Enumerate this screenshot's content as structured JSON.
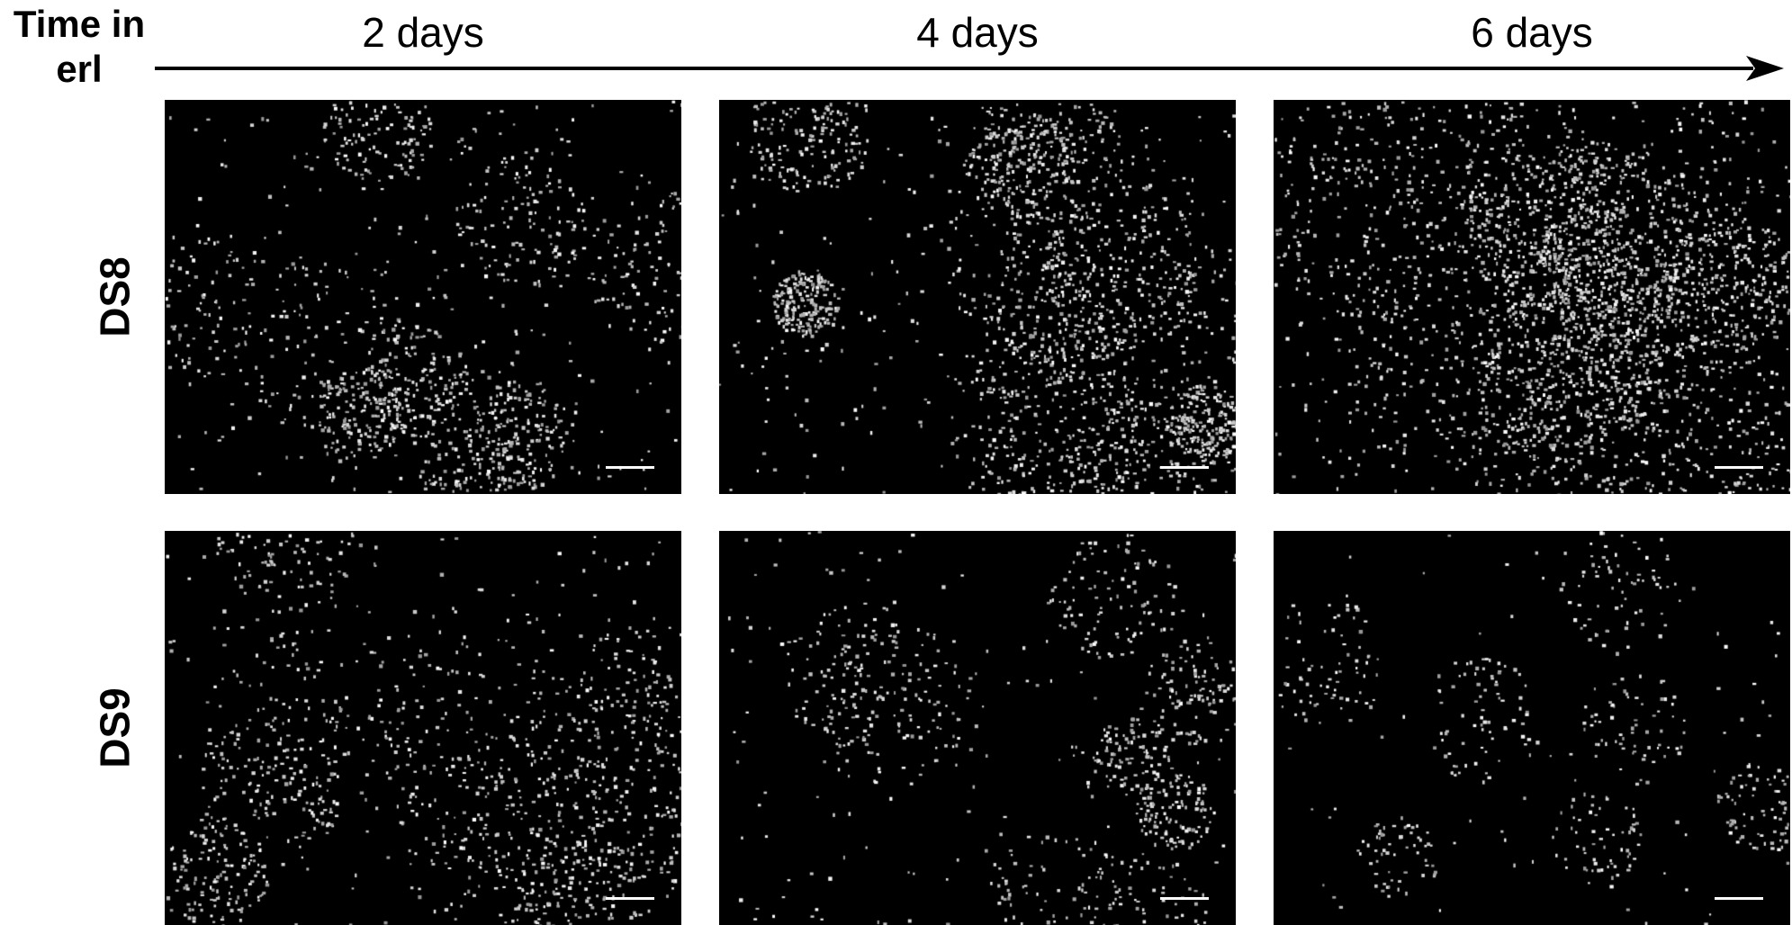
{
  "figure": {
    "time_axis_title": "Time in\nerl",
    "columns": [
      {
        "label": "2 days"
      },
      {
        "label": "4 days"
      },
      {
        "label": "6 days"
      }
    ],
    "rows": [
      {
        "label": "DS8",
        "cell_density": [
          0.35,
          0.6,
          0.88
        ]
      },
      {
        "label": "DS9",
        "cell_density": [
          0.35,
          0.2,
          0.08
        ]
      }
    ],
    "colors": {
      "panel_background": "#000000",
      "nuclei": "#ffffff",
      "axis": "#000000"
    },
    "icons": {
      "time_axis": "right-arrow",
      "scale": "scale-bar"
    }
  }
}
